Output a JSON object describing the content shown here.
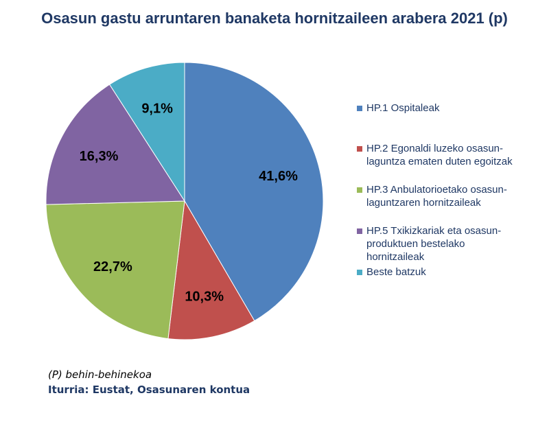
{
  "chart_data": {
    "type": "pie",
    "title": "Osasun gastu arruntaren banaketa hornitzaileen arabera 2021 (p)",
    "categories": [
      "HP.1 Ospitaleak",
      "HP.2 Egonaldi luzeko osasun-laguntza ematen duten egoitzak",
      "HP.3 Anbulatorioetako osasun-laguntzaren hornitzaileak",
      "HP.5 Txikizkariak eta osasun-produktuen bestelako hornitzaileak",
      "Beste batzuk"
    ],
    "values": [
      41.6,
      10.3,
      22.7,
      16.3,
      9.1
    ],
    "value_labels": [
      "41,6%",
      "10,3%",
      "22,7%",
      "16,3%",
      "9,1%"
    ],
    "colors": [
      "#4f81bd",
      "#c0504d",
      "#9bbb59",
      "#8064a2",
      "#4bacc6"
    ],
    "legend_position": "right"
  },
  "legend": {
    "items": [
      {
        "lines": [
          "HP.1 Ospitaleak"
        ]
      },
      {
        "lines": [
          "HP.2 Egonaldi luzeko osasun-",
          "laguntza ematen duten egoitzak"
        ]
      },
      {
        "lines": [
          "HP.3 Anbulatorioetako osasun-",
          "laguntzaren hornitzaileak"
        ]
      },
      {
        "lines": [
          "HP.5 Txikizkariak eta osasun-",
          "produktuen bestelako",
          "hornitzaileak"
        ]
      },
      {
        "lines": [
          "Beste batzuk"
        ]
      }
    ]
  },
  "footer": {
    "note": "(P) behin-behinekoa",
    "source": "Iturria: Eustat, Osasunaren kontua"
  }
}
